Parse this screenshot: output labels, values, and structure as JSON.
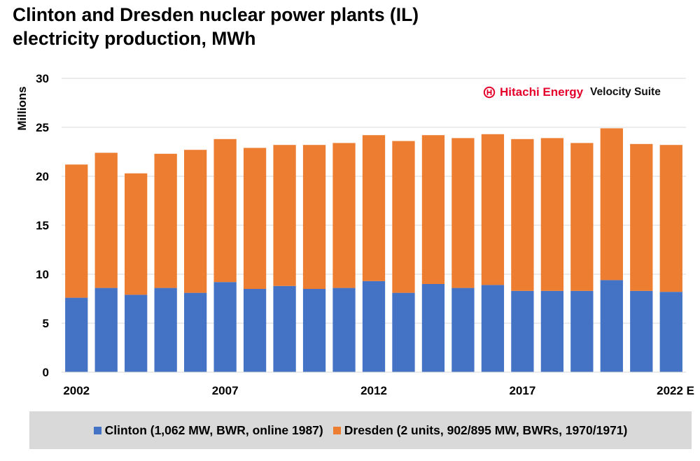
{
  "colors": {
    "clinton": "#4472c4",
    "dresden": "#ed7d31",
    "gridline": "#d9d9d9",
    "brand_red": "#e4002b",
    "legend_bg": "#d9d9d9"
  },
  "branding": {
    "icon": "hitachi-energy-logo-icon",
    "name": "Hitachi Energy",
    "suite": "Velocity Suite"
  },
  "chart_data": {
    "type": "bar",
    "stacked": true,
    "title": "Clinton and Dresden nuclear power plants (IL) electricity production, MWh",
    "title_lines": [
      "Clinton and Dresden nuclear power plants (IL)",
      "electricity production, MWh"
    ],
    "ylabel": "Millions",
    "xlabel": "",
    "ylim": [
      0,
      30
    ],
    "yticks": [
      0,
      5,
      10,
      15,
      20,
      25,
      30
    ],
    "grid": true,
    "legend_position": "bottom",
    "categories": [
      "2002",
      "2003",
      "2004",
      "2005",
      "2006",
      "2007",
      "2008",
      "2009",
      "2010",
      "2011",
      "2012",
      "2013",
      "2014",
      "2015",
      "2016",
      "2017",
      "2018",
      "2019",
      "2020",
      "2021",
      "2022 E"
    ],
    "x_tick_labels": [
      "2002",
      "",
      "",
      "",
      "",
      "2007",
      "",
      "",
      "",
      "",
      "2012",
      "",
      "",
      "",
      "",
      "2017",
      "",
      "",
      "",
      "",
      "2022 E"
    ],
    "series": [
      {
        "name": "Clinton (1,062 MW, BWR, online 1987)",
        "color": "#4472c4",
        "values": [
          7.6,
          8.6,
          7.9,
          8.6,
          8.1,
          9.2,
          8.5,
          8.8,
          8.5,
          8.6,
          9.3,
          8.1,
          9.0,
          8.6,
          8.9,
          8.3,
          8.3,
          8.3,
          9.4,
          8.3,
          8.2
        ]
      },
      {
        "name": "Dresden (2 units, 902/895 MW, BWRs, 1970/1971)",
        "color": "#ed7d31",
        "values": [
          13.6,
          13.8,
          12.4,
          13.7,
          14.6,
          14.6,
          14.4,
          14.4,
          14.7,
          14.8,
          14.9,
          15.5,
          15.2,
          15.3,
          15.4,
          15.5,
          15.6,
          15.1,
          15.5,
          15.0,
          15.0
        ]
      }
    ]
  }
}
